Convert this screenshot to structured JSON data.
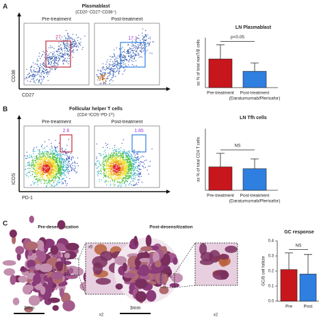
{
  "figure": {
    "panels": [
      {
        "label": "A",
        "plot_title": "Plasmablast",
        "plot_subtitle": "(CD20⁻CD27⁺CD38⁺)",
        "x_axis": "CD27",
        "y_axis": "CD38",
        "plots": [
          {
            "title": "Pre-treatment",
            "gate": 27
          },
          {
            "title": "Post-treatment",
            "gate": 17.1
          }
        ]
      },
      {
        "label": "B",
        "plot_title": "Follicular helper T cells",
        "plot_subtitle": "(CD4⁺ICOS⁺PD-1ʰⁱ)",
        "x_axis": "PD-1",
        "y_axis": "ICOS",
        "plots": [
          {
            "title": "Pre-treatment",
            "gate": 2.6
          },
          {
            "title": "Post-treatment",
            "gate": 1.85
          }
        ]
      }
    ],
    "histology": {
      "label": "C",
      "images": [
        {
          "title": "Pre-desensitization",
          "scale": "3mm",
          "zoom": "x2",
          "inset": "x5"
        },
        {
          "title": "Post-desensitization",
          "scale": "3mm",
          "zoom": "x2"
        }
      ]
    }
  },
  "chart_data": [
    {
      "type": "bar",
      "title": "LN Plasmablast",
      "y_label": "as % of total nonT/B cells",
      "categories": [
        "Pre-treatment",
        "Post-treatment"
      ],
      "category_note": "(Daratumumab/Plerixafor)",
      "values": [
        17.2,
        9.8
      ],
      "errors": [
        8.5,
        5.0
      ],
      "colors": [
        "#c8161d",
        "#2f7fe0"
      ],
      "ylim": [
        0,
        30
      ],
      "annotation": "p<0.05"
    },
    {
      "type": "bar",
      "title": "LN Tfh cells",
      "y_label": "as % of total CD4 T cells",
      "categories": [
        "Pre-treatment",
        "Post-treatment"
      ],
      "category_note": "(Daratumumab/Plerixafor)",
      "values": [
        3.8,
        3.5
      ],
      "errors": [
        2.2,
        1.6
      ],
      "colors": [
        "#c8161d",
        "#2f7fe0"
      ],
      "ylim": [
        0,
        10
      ],
      "annotation": "NS"
    },
    {
      "type": "bar",
      "title": "GC response",
      "y_label": "GC/B cell follicle",
      "categories": [
        "Pre",
        "Post"
      ],
      "values": [
        0.21,
        0.18
      ],
      "errors": [
        0.11,
        0.13
      ],
      "colors": [
        "#c8161d",
        "#2f7fe0"
      ],
      "ylim": [
        0,
        0.4
      ],
      "yticks": [
        {
          "value": 0,
          "label": "0.0"
        },
        0.1,
        0.2,
        0.3,
        0.4
      ],
      "annotation": "NS"
    }
  ]
}
